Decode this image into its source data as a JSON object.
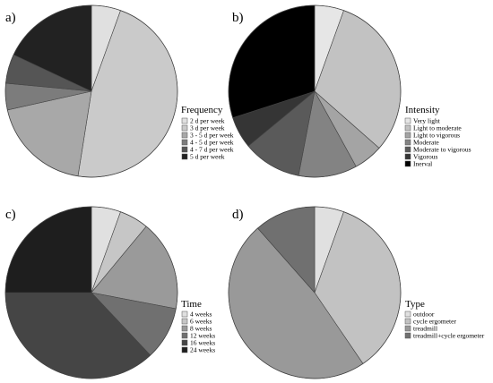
{
  "chart_data": [
    {
      "type": "pie",
      "panel_label": "a)",
      "legend_title": "Frequency",
      "legend_position": "right",
      "start": "top, clockwise",
      "categories": [
        "2 d per week",
        "3 d per week",
        "3 - 5 d per week",
        "4 - 5 d per week",
        "4 - 7 d per week",
        "5 d per week"
      ],
      "values": [
        5.5,
        47,
        19,
        5,
        5.5,
        18
      ],
      "colors": [
        "#e0e0e0",
        "#cacaca",
        "#a8a8a8",
        "#7c7c7c",
        "#555555",
        "#222222"
      ]
    },
    {
      "type": "pie",
      "panel_label": "b)",
      "legend_title": "Intensity",
      "legend_position": "right",
      "start": "top, clockwise",
      "categories": [
        "Very light",
        "Light to moderate",
        "Light to vigorous",
        "Moderate",
        "Moderate to vigorous",
        "Vigorous",
        "Inerval"
      ],
      "values": [
        5.5,
        31,
        5.5,
        11,
        11,
        6,
        30
      ],
      "colors": [
        "#e6e6e6",
        "#c2c2c2",
        "#a4a4a4",
        "#838383",
        "#5a5a5a",
        "#353535",
        "#000000"
      ]
    },
    {
      "type": "pie",
      "panel_label": "c)",
      "legend_title": "Time",
      "legend_position": "right",
      "start": "top, clockwise",
      "categories": [
        "4 weeks",
        "6 weeks",
        "8 weeks",
        "12 weeks",
        "16 weeks",
        "24 weeks"
      ],
      "values": [
        5.5,
        5.5,
        17,
        10,
        37,
        25
      ],
      "colors": [
        "#e0e0e0",
        "#c6c6c6",
        "#9a9a9a",
        "#707070",
        "#454545",
        "#1e1e1e"
      ]
    },
    {
      "type": "pie",
      "panel_label": "d)",
      "legend_title": "Type",
      "legend_position": "right",
      "start": "top, clockwise",
      "categories": [
        "outdoor",
        "cycle ergometer",
        "treadmill",
        "treadmill+cycle ergometer"
      ],
      "values": [
        5.5,
        35,
        48,
        11.5
      ],
      "colors": [
        "#e0e0e0",
        "#c2c2c2",
        "#999999",
        "#707070"
      ]
    }
  ]
}
